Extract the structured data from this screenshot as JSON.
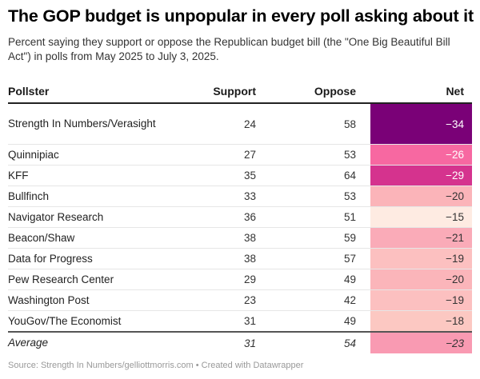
{
  "title": "The GOP budget is unpopular in every poll asking about it",
  "subtitle": "Percent saying they support or oppose the Republican budget bill (the \"One Big Beautiful Bill Act\") in polls from May 2025 to July 3, 2025.",
  "footer": "Source: Strength In Numbers/gelliottmorris.com • Created with Datawrapper",
  "chart_data": {
    "type": "table",
    "columns": [
      "Pollster",
      "Support",
      "Oppose",
      "Net"
    ],
    "rows": [
      {
        "pollster": "Strength In Numbers/Verasight",
        "support": "24",
        "oppose": "58",
        "net": "−34",
        "color": "#7a0177",
        "text_color": "#ffffff"
      },
      {
        "pollster": "Quinnipiac",
        "support": "27",
        "oppose": "53",
        "net": "−26",
        "color": "#f768a1",
        "text_color": "#ffffff"
      },
      {
        "pollster": "KFF",
        "support": "35",
        "oppose": "64",
        "net": "−29",
        "color": "#d5338e",
        "text_color": "#ffffff"
      },
      {
        "pollster": "Bullfinch",
        "support": "33",
        "oppose": "53",
        "net": "−20",
        "color": "#fbb4b9",
        "text_color": "#333333"
      },
      {
        "pollster": "Navigator Research",
        "support": "36",
        "oppose": "51",
        "net": "−15",
        "color": "#feebe2",
        "text_color": "#333333"
      },
      {
        "pollster": "Beacon/Shaw",
        "support": "38",
        "oppose": "59",
        "net": "−21",
        "color": "#faabb8",
        "text_color": "#333333"
      },
      {
        "pollster": "Data for Progress",
        "support": "38",
        "oppose": "57",
        "net": "−19",
        "color": "#fcc0c0",
        "text_color": "#333333"
      },
      {
        "pollster": "Pew Research Center",
        "support": "29",
        "oppose": "49",
        "net": "−20",
        "color": "#fbb5ba",
        "text_color": "#333333"
      },
      {
        "pollster": "Washington Post",
        "support": "23",
        "oppose": "42",
        "net": "−19",
        "color": "#fcc0c0",
        "text_color": "#333333"
      },
      {
        "pollster": "YouGov/The Economist",
        "support": "31",
        "oppose": "49",
        "net": "−18",
        "color": "#fcc8c2",
        "text_color": "#333333"
      }
    ],
    "average": {
      "pollster": "Average",
      "support": "31",
      "oppose": "54",
      "net": "−23",
      "color": "#f99ab2",
      "text_color": "#333333"
    }
  }
}
